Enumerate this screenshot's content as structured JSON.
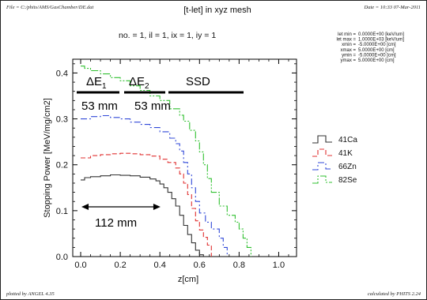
{
  "header": {
    "file_label": "File = C:/phits/AMS/GasChamber/DE.dat",
    "title": "[t-let] in xyz mesh",
    "date_label": "Date = 10:33 07-Mar-2011"
  },
  "subtitle": "no. =  1,  il =  1,  ix =  1,  iy =  1",
  "parameters": [
    {
      "name": "let min",
      "value": "0.0000E+00",
      "unit": "[keV/um]"
    },
    {
      "name": "let max",
      "value": "1.0000E+03",
      "unit": "[keV/um]"
    },
    {
      "name": "xmin",
      "value": "-5.0000E+00",
      "unit": "[cm]"
    },
    {
      "name": "xmax",
      "value": "5.0000E+00",
      "unit": "[cm]"
    },
    {
      "name": "ymin",
      "value": "-5.0000E+00",
      "unit": "[cm]"
    },
    {
      "name": "ymax",
      "value": "5.0000E+00",
      "unit": "[cm]"
    }
  ],
  "footer": {
    "left": "plotted by ANGEL 4.35",
    "right": "calculated by PHITS 2.24"
  },
  "annotations": {
    "delta_e1": {
      "symbol": "ΔE",
      "sub": "1",
      "length": "53 mm"
    },
    "delta_e2": {
      "symbol": "ΔE",
      "sub": "2",
      "length": "53 mm"
    },
    "ssd": "SSD",
    "range_label": "112 mm",
    "range_x": [
      0.0,
      0.403
    ]
  },
  "chart_data": {
    "type": "line",
    "xlabel": "z[cm]",
    "ylabel": "Stopping Power [MeV/mg/cm2]",
    "xlim": [
      -0.04,
      1.09
    ],
    "ylim": [
      0.0,
      0.43
    ],
    "xticks": [
      0.0,
      0.2,
      0.4,
      0.6,
      0.8,
      1.0
    ],
    "yticks": [
      0.0,
      0.1,
      0.2,
      0.3,
      0.4
    ],
    "xtick_labels": [
      "0.0",
      "0.2",
      "0.4",
      "0.6",
      "0.8",
      "1.0"
    ],
    "ytick_labels": [
      "0.0",
      "0.1",
      "0.2",
      "0.3",
      "0.4"
    ],
    "legend_position": "right",
    "series": [
      {
        "name": "41Ca",
        "color": "#333333",
        "dash": "solid",
        "step": true,
        "x": [
          0.0,
          0.02,
          0.05,
          0.1,
          0.15,
          0.2,
          0.25,
          0.3,
          0.35,
          0.38,
          0.4,
          0.42,
          0.44,
          0.46,
          0.48,
          0.5,
          0.52,
          0.54,
          0.56,
          0.58,
          0.6,
          0.62
        ],
        "y": [
          0.167,
          0.172,
          0.174,
          0.176,
          0.178,
          0.177,
          0.176,
          0.173,
          0.169,
          0.165,
          0.158,
          0.15,
          0.14,
          0.126,
          0.11,
          0.09,
          0.068,
          0.048,
          0.03,
          0.014,
          0.004,
          0.0
        ]
      },
      {
        "name": "41K",
        "color": "#e03030",
        "dash": "6,3",
        "step": true,
        "x": [
          0.0,
          0.05,
          0.1,
          0.15,
          0.2,
          0.25,
          0.3,
          0.35,
          0.4,
          0.44,
          0.48,
          0.5,
          0.52,
          0.54,
          0.56,
          0.58,
          0.6,
          0.62,
          0.64,
          0.66
        ],
        "y": [
          0.215,
          0.22,
          0.222,
          0.224,
          0.225,
          0.224,
          0.222,
          0.219,
          0.212,
          0.205,
          0.193,
          0.18,
          0.16,
          0.135,
          0.105,
          0.078,
          0.058,
          0.042,
          0.025,
          0.0
        ]
      },
      {
        "name": "66Zn",
        "color": "#3048d8",
        "dash": "8,3,2,3",
        "step": true,
        "x": [
          0.0,
          0.05,
          0.1,
          0.15,
          0.2,
          0.25,
          0.3,
          0.35,
          0.4,
          0.45,
          0.48,
          0.5,
          0.52,
          0.54,
          0.56,
          0.58,
          0.6,
          0.63,
          0.66,
          0.7,
          0.72,
          0.74
        ],
        "y": [
          0.3,
          0.305,
          0.307,
          0.303,
          0.3,
          0.293,
          0.288,
          0.281,
          0.272,
          0.258,
          0.246,
          0.23,
          0.205,
          0.18,
          0.15,
          0.12,
          0.095,
          0.075,
          0.06,
          0.04,
          0.02,
          0.0
        ]
      },
      {
        "name": "82Se",
        "color": "#30c030",
        "dash": "9,2,2,2,2,2",
        "step": true,
        "x": [
          0.0,
          0.02,
          0.05,
          0.1,
          0.15,
          0.2,
          0.25,
          0.3,
          0.35,
          0.4,
          0.45,
          0.5,
          0.52,
          0.55,
          0.58,
          0.6,
          0.62,
          0.64,
          0.66,
          0.7,
          0.74,
          0.78,
          0.8,
          0.82,
          0.84,
          0.86
        ],
        "y": [
          0.415,
          0.41,
          0.405,
          0.398,
          0.39,
          0.383,
          0.372,
          0.362,
          0.35,
          0.34,
          0.322,
          0.308,
          0.295,
          0.275,
          0.252,
          0.228,
          0.2,
          0.17,
          0.14,
          0.11,
          0.09,
          0.075,
          0.06,
          0.04,
          0.02,
          0.0
        ]
      }
    ]
  }
}
